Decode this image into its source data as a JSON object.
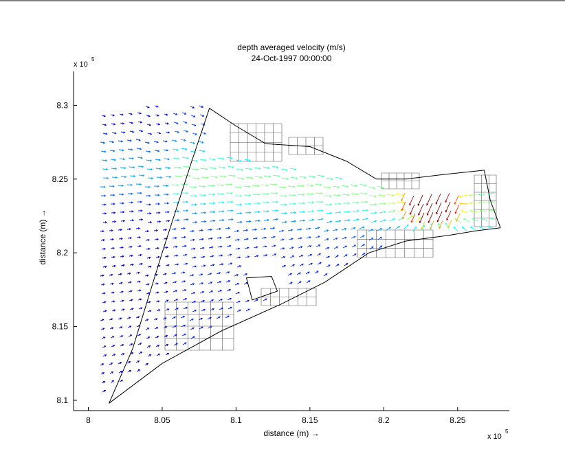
{
  "chart_data": {
    "type": "quiver",
    "title": "depth averaged velocity (m/s)",
    "subtitle": "24-Oct-1997 00:00:00",
    "xlabel": "distance (m) →",
    "ylabel": "distance (m) →",
    "x_multiplier": "x 10",
    "y_multiplier": "x 10",
    "x_multiplier_exponent": "5",
    "y_multiplier_exponent": "5",
    "xlim": [
      7.99,
      8.285
    ],
    "ylim": [
      8.093,
      8.323
    ],
    "xticks": [
      8.0,
      8.05,
      8.1,
      8.15,
      8.2,
      8.25
    ],
    "yticks": [
      8.1,
      8.15,
      8.2,
      8.25,
      8.3
    ],
    "xtick_labels": [
      "8",
      "8.05",
      "8.1",
      "8.15",
      "8.2",
      "8.25"
    ],
    "ytick_labels": [
      "8.1",
      "8.15",
      "8.2",
      "8.25",
      "8.3"
    ],
    "colormap": "jet",
    "colors": {
      "axis": "#000000",
      "grid_mesh": "#444444"
    },
    "boundary_north": [
      [
        8.014,
        8.098
      ],
      [
        8.03,
        8.135
      ],
      [
        8.05,
        8.2
      ],
      [
        8.07,
        8.262
      ],
      [
        8.082,
        8.298
      ],
      [
        8.1,
        8.286
      ],
      [
        8.12,
        8.274
      ],
      [
        8.15,
        8.272
      ],
      [
        8.175,
        8.262
      ],
      [
        8.195,
        8.25
      ],
      [
        8.215,
        8.25
      ],
      [
        8.24,
        8.253
      ],
      [
        8.268,
        8.256
      ]
    ],
    "boundary_south": [
      [
        8.014,
        8.098
      ],
      [
        8.05,
        8.125
      ],
      [
        8.09,
        8.147
      ],
      [
        8.13,
        8.165
      ],
      [
        8.16,
        8.18
      ],
      [
        8.19,
        8.2
      ],
      [
        8.215,
        8.208
      ],
      [
        8.245,
        8.212
      ],
      [
        8.263,
        8.215
      ],
      [
        8.279,
        8.217
      ]
    ],
    "boundary_east": [
      [
        8.268,
        8.256
      ],
      [
        8.272,
        8.236
      ],
      [
        8.276,
        8.225
      ],
      [
        8.279,
        8.217
      ]
    ],
    "island": [
      [
        8.107,
        8.183
      ],
      [
        8.124,
        8.184
      ],
      [
        8.128,
        8.174
      ],
      [
        8.111,
        8.168
      ],
      [
        8.107,
        8.183
      ]
    ]
  }
}
